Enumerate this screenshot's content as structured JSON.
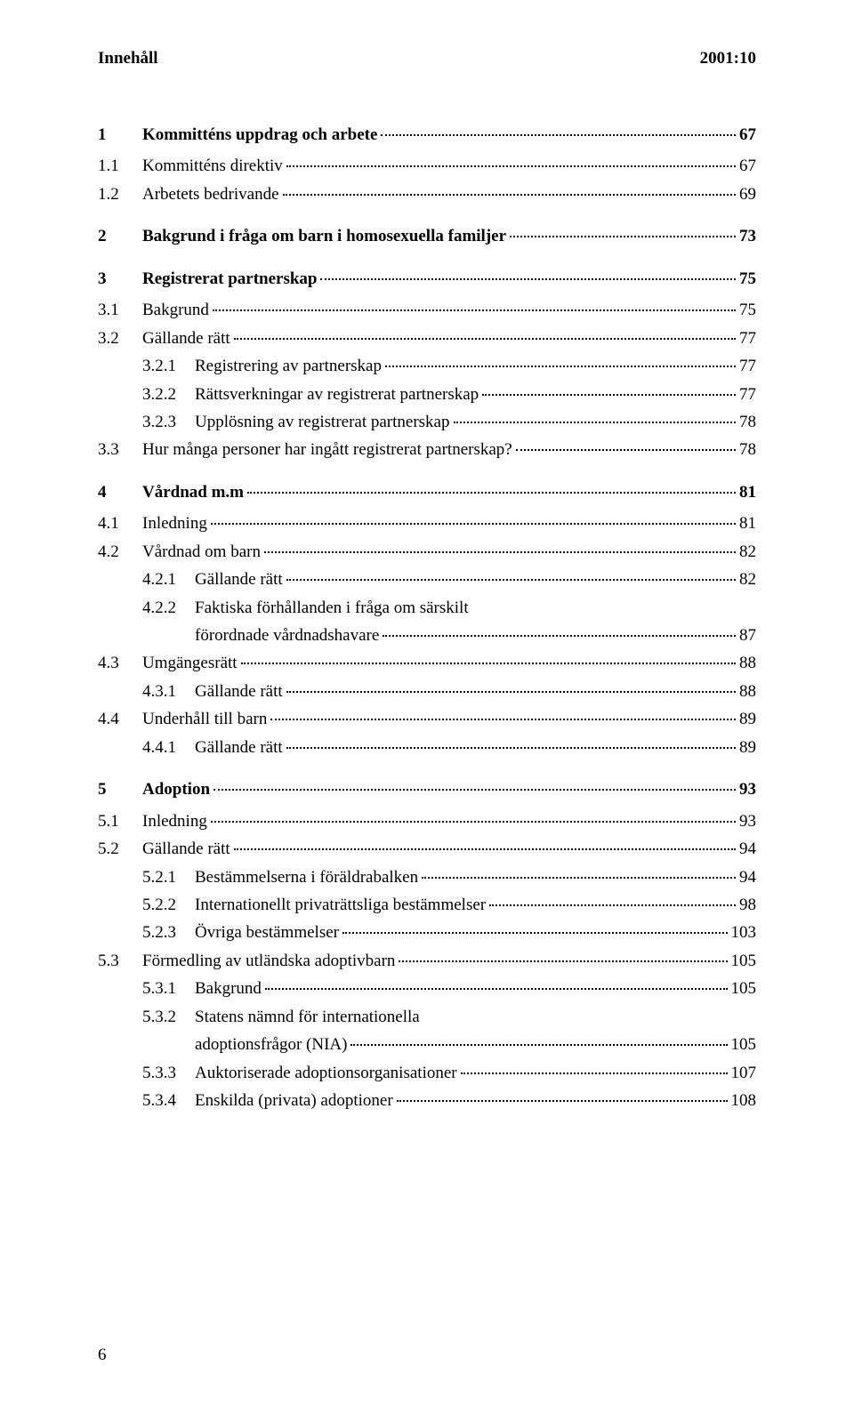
{
  "header": {
    "left": "Innehåll",
    "right": "2001:10"
  },
  "toc": [
    {
      "level": 1,
      "num": "1",
      "text": "Kommitténs uppdrag och arbete",
      "page": "67"
    },
    {
      "level": 2,
      "num": "1.1",
      "text": "Kommitténs direktiv",
      "page": "67"
    },
    {
      "level": 2,
      "num": "1.2",
      "text": "Arbetets bedrivande",
      "page": "69"
    },
    {
      "level": 1,
      "num": "2",
      "text": "Bakgrund i fråga om barn i homosexuella familjer",
      "page": "73"
    },
    {
      "level": 1,
      "num": "3",
      "text": "Registrerat partnerskap",
      "page": "75"
    },
    {
      "level": 2,
      "num": "3.1",
      "text": "Bakgrund",
      "page": "75"
    },
    {
      "level": 2,
      "num": "3.2",
      "text": "Gällande rätt",
      "page": "77"
    },
    {
      "level": 3,
      "num": "3.2.1",
      "text": "Registrering av partnerskap",
      "page": "77"
    },
    {
      "level": 3,
      "num": "3.2.2",
      "text": "Rättsverkningar av registrerat partnerskap",
      "page": "77"
    },
    {
      "level": 3,
      "num": "3.2.3",
      "text": "Upplösning av registrerat partnerskap",
      "page": "78"
    },
    {
      "level": 2,
      "num": "3.3",
      "text": "Hur många personer har ingått registrerat partnerskap?",
      "page": "78"
    },
    {
      "level": 1,
      "num": "4",
      "text": "Vårdnad m.m",
      "page": "81"
    },
    {
      "level": 2,
      "num": "4.1",
      "text": "Inledning",
      "page": "81"
    },
    {
      "level": 2,
      "num": "4.2",
      "text": "Vårdnad om barn",
      "page": "82"
    },
    {
      "level": 3,
      "num": "4.2.1",
      "text": "Gällande rätt",
      "page": "82"
    },
    {
      "level": 3,
      "num": "4.2.2",
      "text": "Faktiska förhållanden i fråga om särskilt",
      "page": "",
      "noleader": true
    },
    {
      "level": "3c",
      "num": "",
      "text": "förordnade vårdnadshavare",
      "page": "87"
    },
    {
      "level": 2,
      "num": "4.3",
      "text": "Umgängesrätt",
      "page": "88"
    },
    {
      "level": 3,
      "num": "4.3.1",
      "text": "Gällande rätt",
      "page": "88"
    },
    {
      "level": 2,
      "num": "4.4",
      "text": "Underhåll till barn",
      "page": "89"
    },
    {
      "level": 3,
      "num": "4.4.1",
      "text": "Gällande rätt",
      "page": "89"
    },
    {
      "level": 1,
      "num": "5",
      "text": "Adoption",
      "page": "93"
    },
    {
      "level": 2,
      "num": "5.1",
      "text": "Inledning",
      "page": "93"
    },
    {
      "level": 2,
      "num": "5.2",
      "text": "Gällande rätt",
      "page": "94"
    },
    {
      "level": 3,
      "num": "5.2.1",
      "text": "Bestämmelserna i föräldrabalken",
      "page": "94"
    },
    {
      "level": 3,
      "num": "5.2.2",
      "text": "Internationellt privaträttsliga bestämmelser",
      "page": "98"
    },
    {
      "level": 3,
      "num": "5.2.3",
      "text": "Övriga bestämmelser",
      "page": "103"
    },
    {
      "level": 2,
      "num": "5.3",
      "text": "Förmedling av utländska adoptivbarn",
      "page": "105"
    },
    {
      "level": 3,
      "num": "5.3.1",
      "text": "Bakgrund",
      "page": "105"
    },
    {
      "level": 3,
      "num": "5.3.2",
      "text": "Statens nämnd för internationella",
      "page": "",
      "noleader": true
    },
    {
      "level": "3c",
      "num": "",
      "text": "adoptionsfrågor (NIA)",
      "page": "105"
    },
    {
      "level": 3,
      "num": "5.3.3",
      "text": "Auktoriserade adoptionsorganisationer",
      "page": "107"
    },
    {
      "level": 3,
      "num": "5.3.4",
      "text": "Enskilda (privata) adoptioner",
      "page": "108"
    }
  ],
  "pageNumber": "6"
}
